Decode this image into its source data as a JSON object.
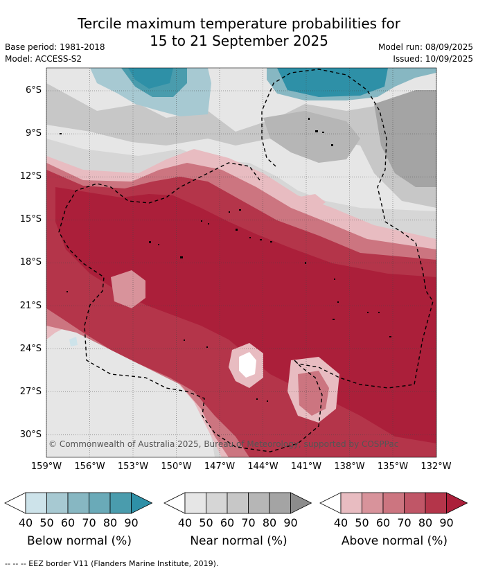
{
  "header": {
    "title_line1": "Tercile maximum temperature probabilities for",
    "title_line2": "15 to 21 September 2025",
    "base_period": "Base period: 1981-2018",
    "model": "Model: ACCESS-S2",
    "model_run": "Model run: 08/09/2025",
    "issued": "Issued: 10/09/2025"
  },
  "map": {
    "lat_labels": [
      "6°S",
      "9°S",
      "12°S",
      "15°S",
      "18°S",
      "21°S",
      "24°S",
      "27°S",
      "30°S"
    ],
    "lon_labels": [
      "159°W",
      "156°W",
      "153°W",
      "150°W",
      "147°W",
      "144°W",
      "141°W",
      "138°W",
      "135°W",
      "132°W"
    ],
    "credit": "© Commonwealth of Australia 2025, Bureau of Meteorology, supported by COSPPac"
  },
  "legend": {
    "ticks": [
      "40",
      "50",
      "60",
      "70",
      "80",
      "90"
    ],
    "below": {
      "title": "Below normal (%)",
      "colors": [
        "#cde3ea",
        "#a7c9d2",
        "#87b7c2",
        "#6aaab8",
        "#4a9cad",
        "#2e90a7"
      ]
    },
    "near": {
      "title": "Near normal (%)",
      "colors": [
        "#e6e6e6",
        "#d6d6d6",
        "#c7c7c7",
        "#b6b6b6",
        "#a4a4a4",
        "#8c8c8c"
      ]
    },
    "above": {
      "title": "Above normal (%)",
      "colors": [
        "#e8bcc1",
        "#d8939b",
        "#cc7580",
        "#c05667",
        "#b4354a",
        "#ab1f3a"
      ]
    }
  },
  "footer": {
    "eez_note": "-- -- -- EEZ border V11 (Flanders Marine Institute, 2019)."
  }
}
